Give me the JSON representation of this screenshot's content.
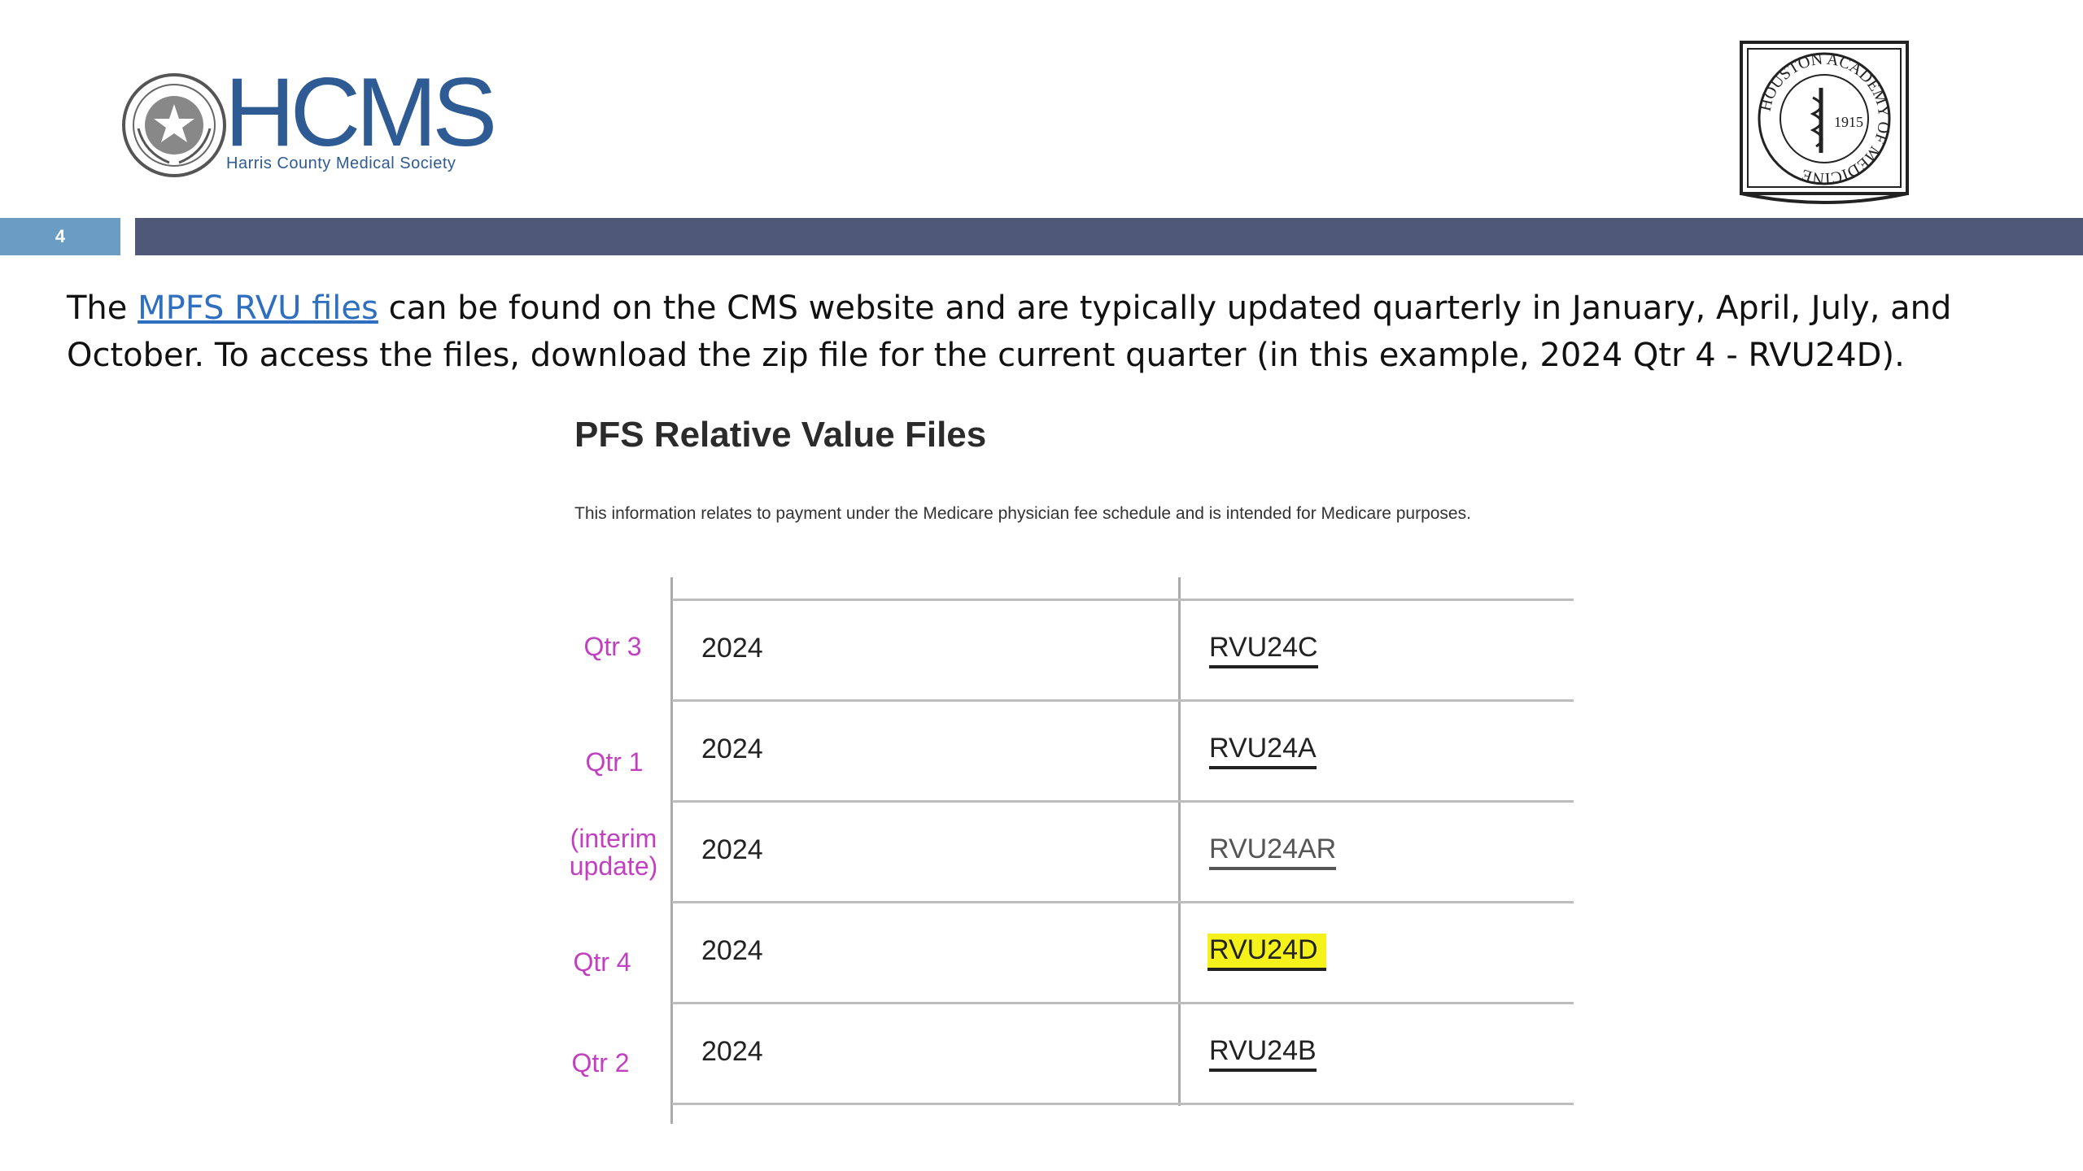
{
  "header": {
    "hcms_wordmark": "HCMS",
    "hcms_subtitle": "Harris County Medical Society",
    "academy_ring_text": "HOUSTON ACADEMY OF MEDICINE",
    "academy_year": "1915"
  },
  "slide": {
    "page_number": "4"
  },
  "body": {
    "text_before_link": "The ",
    "link_text": "MPFS RVU files",
    "text_after_link": " can be found on the CMS website and are typically updated quarterly in January, April, July, and October. To access the files, download the zip file for the current quarter (in this example, 2024 Qtr 4 - RVU24D)."
  },
  "screenshot": {
    "title": "PFS Relative Value Files",
    "description": "This information relates to payment under the Medicare physician fee schedule and is intended for Medicare purposes.",
    "rows": [
      {
        "quarter": "Qtr 3",
        "year": "2024",
        "file": "RVU24C"
      },
      {
        "quarter": "Qtr 1",
        "year": "2024",
        "file": "RVU24A"
      },
      {
        "quarter": "(interim update)",
        "year": "2024",
        "file": "RVU24AR"
      },
      {
        "quarter": "Qtr 4",
        "year": "2024",
        "file": "RVU24D"
      },
      {
        "quarter": "Qtr 2",
        "year": "2024",
        "file": "RVU24B"
      }
    ],
    "highlight_color": "#f4f21a",
    "annotation_color": "#c23fc2"
  }
}
